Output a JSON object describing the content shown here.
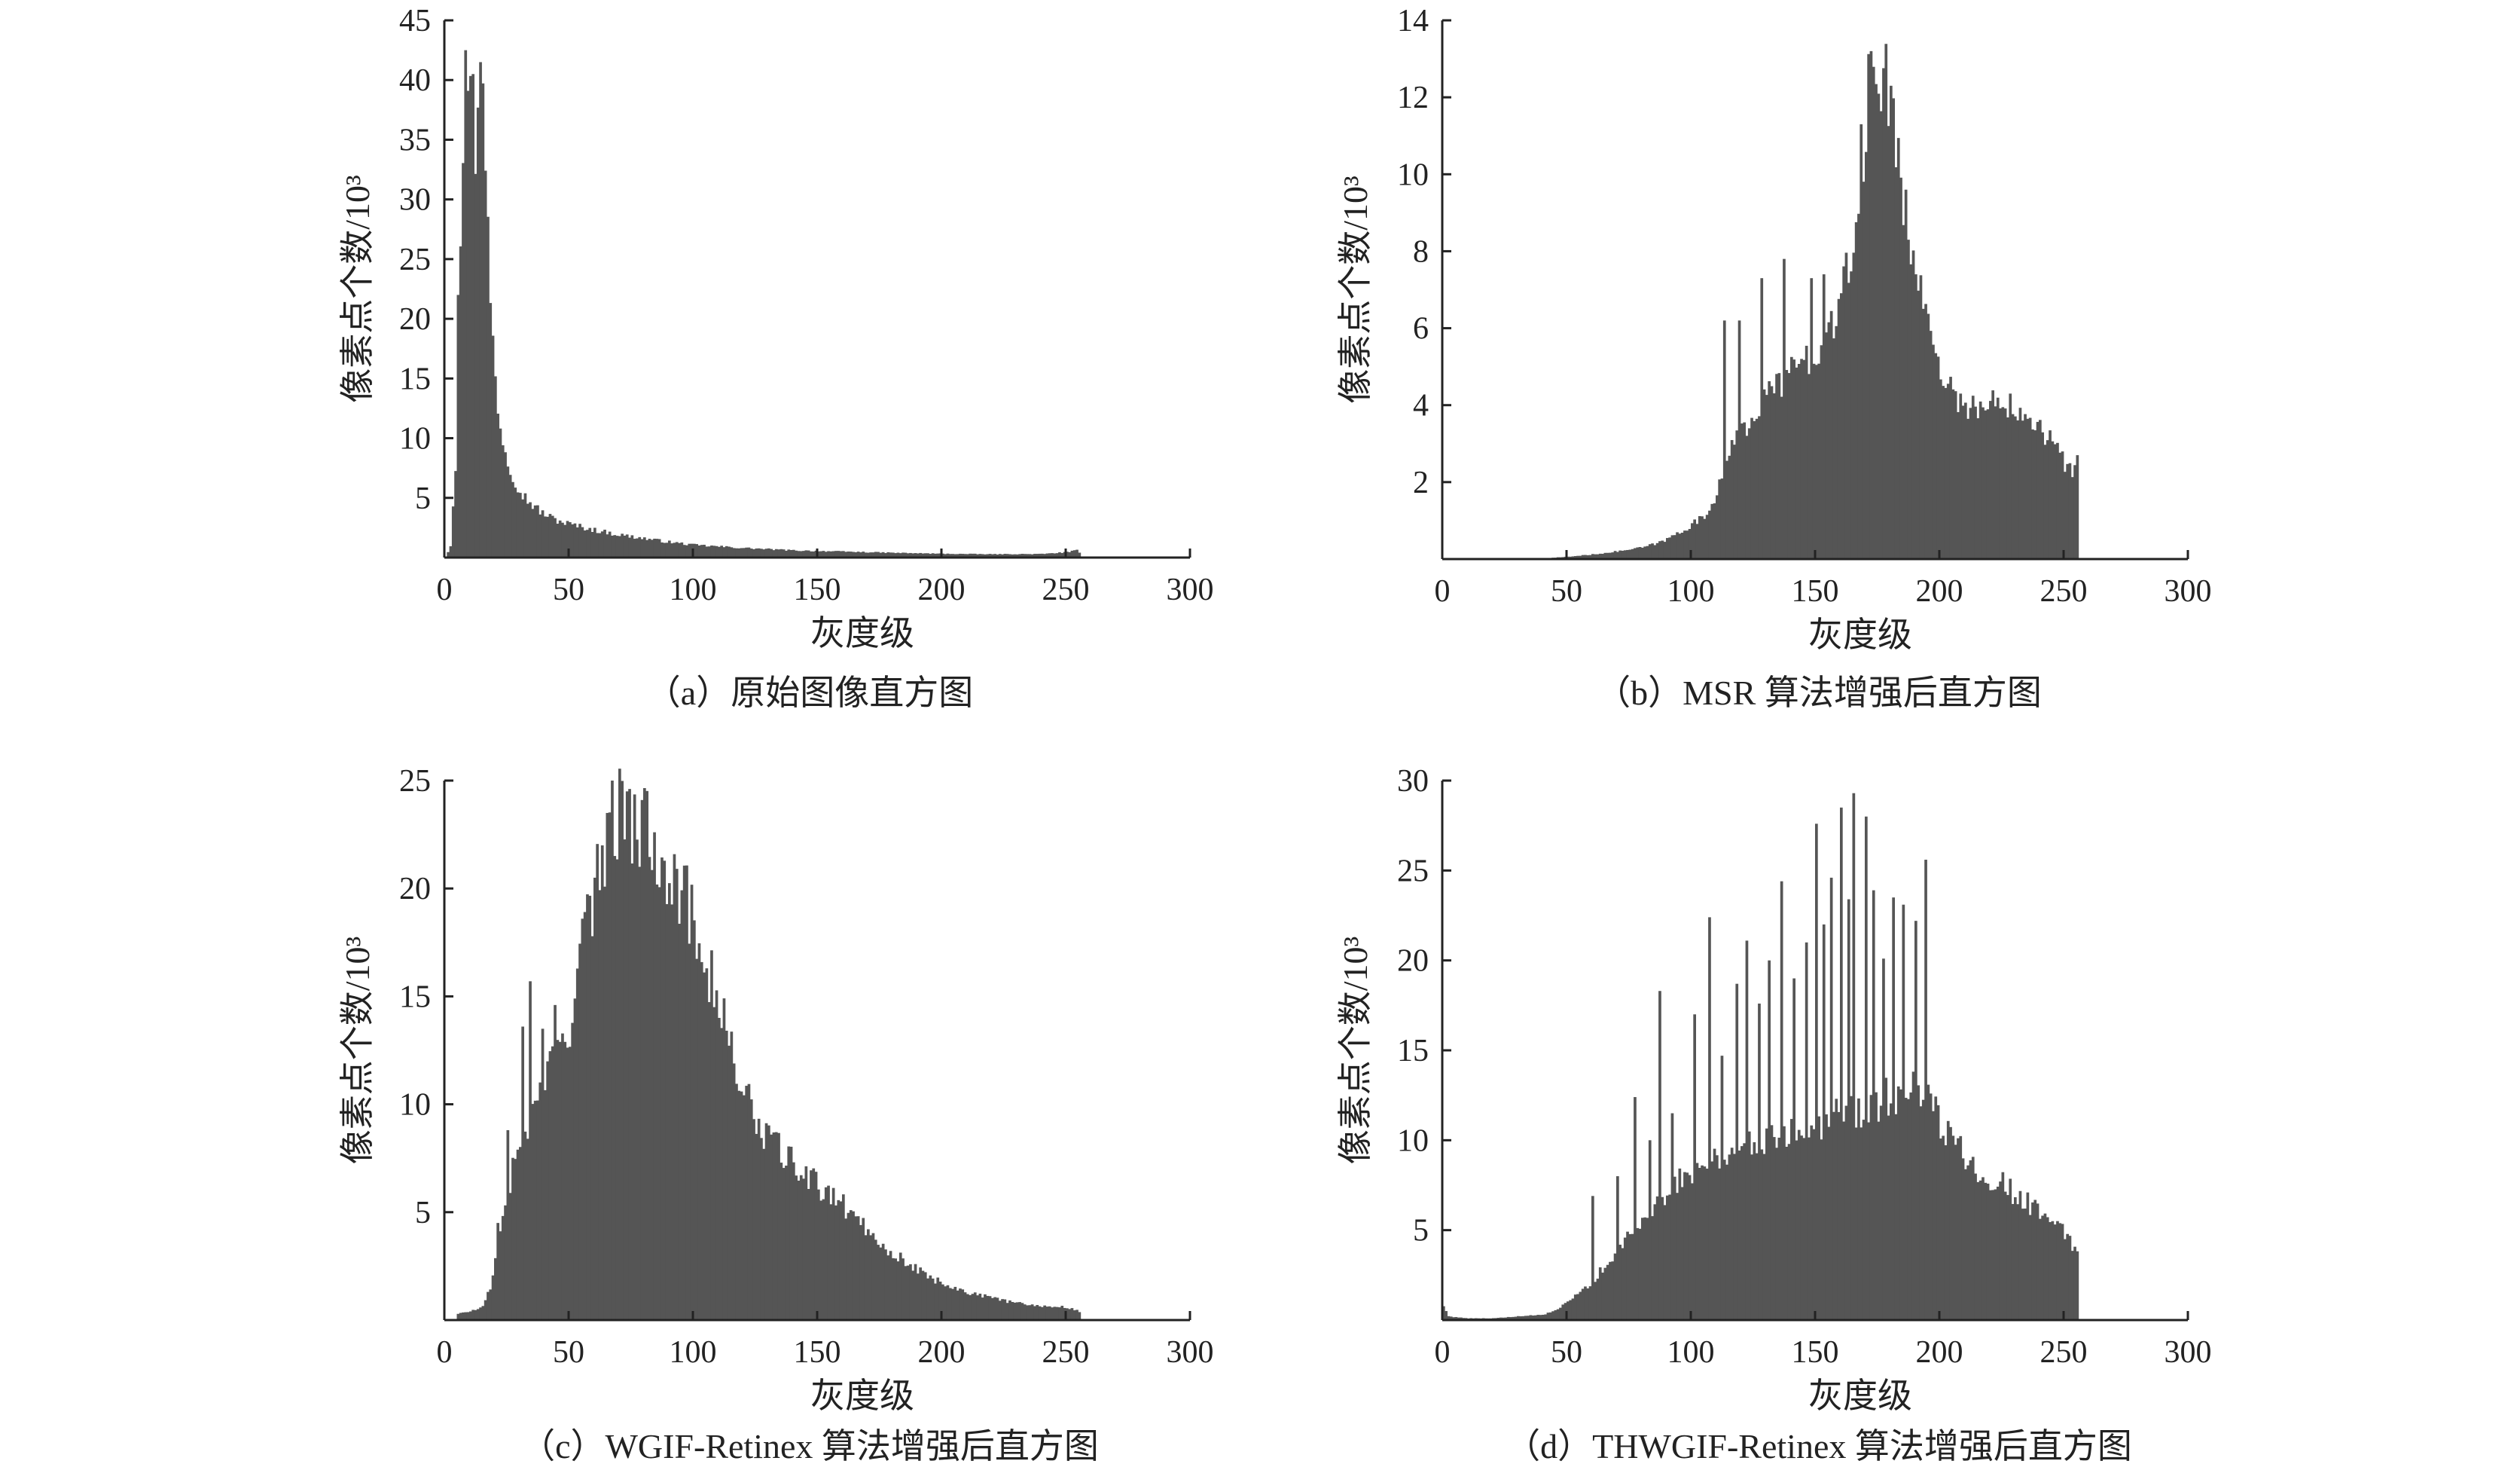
{
  "chart_data": [
    {
      "id": "a",
      "type": "bar",
      "caption": "（a）原始图像直方图",
      "xlabel": "灰度级",
      "ylabel": "像素点个数/10³",
      "xlim": [
        0,
        300
      ],
      "ylim": [
        0,
        45
      ],
      "xticks": [
        0,
        50,
        100,
        150,
        200,
        250,
        300
      ],
      "yticks": [
        5,
        10,
        15,
        20,
        25,
        30,
        35,
        40,
        45
      ],
      "bar_color": "#555555",
      "grid": false,
      "x_range": [
        0,
        255
      ],
      "profile_points": [
        [
          0,
          0
        ],
        [
          2,
          1
        ],
        [
          4,
          8
        ],
        [
          6,
          28
        ],
        [
          8,
          38
        ],
        [
          9,
          42
        ],
        [
          10,
          38
        ],
        [
          11,
          31
        ],
        [
          12,
          33
        ],
        [
          13,
          40
        ],
        [
          14,
          41
        ],
        [
          15,
          38
        ],
        [
          16,
          32
        ],
        [
          17,
          27
        ],
        [
          18,
          22
        ],
        [
          19,
          18
        ],
        [
          20,
          15
        ],
        [
          22,
          11
        ],
        [
          24,
          9
        ],
        [
          26,
          7.5
        ],
        [
          28,
          6.5
        ],
        [
          30,
          5.6
        ],
        [
          33,
          4.8
        ],
        [
          36,
          4.2
        ],
        [
          40,
          3.6
        ],
        [
          45,
          3.1
        ],
        [
          50,
          2.8
        ],
        [
          60,
          2.3
        ],
        [
          70,
          1.9
        ],
        [
          80,
          1.6
        ],
        [
          90,
          1.3
        ],
        [
          100,
          1.05
        ],
        [
          120,
          0.8
        ],
        [
          140,
          0.6
        ],
        [
          160,
          0.5
        ],
        [
          180,
          0.4
        ],
        [
          200,
          0.32
        ],
        [
          220,
          0.28
        ],
        [
          240,
          0.3
        ],
        [
          250,
          0.45
        ],
        [
          254,
          0.6
        ],
        [
          255,
          0.4
        ]
      ],
      "spikes": [
        [
          8,
          42.5
        ],
        [
          14,
          41.5
        ],
        [
          11,
          40.5
        ],
        [
          5,
          22
        ]
      ]
    },
    {
      "id": "b",
      "type": "bar",
      "caption": "（b）MSR 算法增强后直方图",
      "xlabel": "灰度级",
      "ylabel": "像素点个数/10³",
      "xlim": [
        0,
        300
      ],
      "ylim": [
        0,
        14
      ],
      "xticks": [
        0,
        50,
        100,
        150,
        200,
        250,
        300
      ],
      "yticks": [
        2,
        4,
        6,
        8,
        10,
        12,
        14
      ],
      "bar_color": "#555555",
      "grid": false,
      "x_range": [
        0,
        255
      ],
      "profile_points": [
        [
          0,
          0
        ],
        [
          40,
          0.02
        ],
        [
          50,
          0.06
        ],
        [
          60,
          0.12
        ],
        [
          70,
          0.2
        ],
        [
          80,
          0.3
        ],
        [
          88,
          0.45
        ],
        [
          95,
          0.7
        ],
        [
          100,
          0.9
        ],
        [
          105,
          1.1
        ],
        [
          108,
          1.4
        ],
        [
          112,
          2.2
        ],
        [
          115,
          2.7
        ],
        [
          120,
          3.3
        ],
        [
          125,
          3.8
        ],
        [
          130,
          4.2
        ],
        [
          135,
          4.6
        ],
        [
          140,
          4.9
        ],
        [
          145,
          5.1
        ],
        [
          150,
          5.4
        ],
        [
          155,
          5.9
        ],
        [
          160,
          6.6
        ],
        [
          165,
          8.2
        ],
        [
          168,
          9.6
        ],
        [
          170,
          11.5
        ],
        [
          172,
          12.5
        ],
        [
          174,
          13
        ],
        [
          176,
          12.8
        ],
        [
          178,
          12.3
        ],
        [
          180,
          11.8
        ],
        [
          183,
          10.5
        ],
        [
          186,
          9.2
        ],
        [
          190,
          7.8
        ],
        [
          195,
          6.1
        ],
        [
          200,
          5.0
        ],
        [
          205,
          4.3
        ],
        [
          210,
          4.0
        ],
        [
          215,
          3.9
        ],
        [
          220,
          4.0
        ],
        [
          225,
          4.1
        ],
        [
          230,
          4.0
        ],
        [
          235,
          3.8
        ],
        [
          240,
          3.5
        ],
        [
          245,
          3.0
        ],
        [
          250,
          2.5
        ],
        [
          253,
          2.2
        ],
        [
          255,
          2.4
        ]
      ],
      "spikes": [
        [
          113,
          6.2
        ],
        [
          119,
          6.2
        ],
        [
          128,
          7.3
        ],
        [
          137,
          7.8
        ],
        [
          148,
          7.3
        ],
        [
          153,
          7.4
        ],
        [
          168,
          11.3
        ],
        [
          172,
          13.2
        ],
        [
          180,
          12.3
        ],
        [
          186,
          9.6
        ],
        [
          190,
          7.4
        ],
        [
          228,
          4.3
        ],
        [
          255,
          2.7
        ]
      ]
    },
    {
      "id": "c",
      "type": "bar",
      "caption": "（c）WGIF-Retinex 算法增强后直方图",
      "xlabel": "灰度级",
      "ylabel": "像素点个数/10³",
      "xlim": [
        0,
        300
      ],
      "ylim": [
        0,
        25
      ],
      "xticks": [
        0,
        50,
        100,
        150,
        200,
        250,
        300
      ],
      "yticks": [
        5,
        10,
        15,
        20,
        25
      ],
      "bar_color": "#555555",
      "grid": false,
      "x_range": [
        5,
        255
      ],
      "profile_points": [
        [
          5,
          0.3
        ],
        [
          10,
          0.4
        ],
        [
          15,
          0.6
        ],
        [
          18,
          1.5
        ],
        [
          20,
          2.8
        ],
        [
          23,
          4.5
        ],
        [
          26,
          6.5
        ],
        [
          30,
          8.0
        ],
        [
          35,
          9.5
        ],
        [
          40,
          11.0
        ],
        [
          45,
          12.5
        ],
        [
          50,
          14.0
        ],
        [
          55,
          17.0
        ],
        [
          60,
          20.0
        ],
        [
          65,
          22.5
        ],
        [
          70,
          23.5
        ],
        [
          75,
          23.2
        ],
        [
          80,
          22.7
        ],
        [
          85,
          22.2
        ],
        [
          90,
          21.2
        ],
        [
          95,
          19.8
        ],
        [
          100,
          18.3
        ],
        [
          105,
          16.8
        ],
        [
          110,
          14.5
        ],
        [
          115,
          12.5
        ],
        [
          120,
          10.5
        ],
        [
          125,
          9.2
        ],
        [
          130,
          8.4
        ],
        [
          135,
          7.8
        ],
        [
          140,
          7.2
        ],
        [
          145,
          6.7
        ],
        [
          150,
          6.2
        ],
        [
          155,
          5.8
        ],
        [
          160,
          5.3
        ],
        [
          165,
          4.8
        ],
        [
          170,
          4.2
        ],
        [
          175,
          3.6
        ],
        [
          180,
          3.1
        ],
        [
          185,
          2.7
        ],
        [
          190,
          2.3
        ],
        [
          195,
          2.0
        ],
        [
          200,
          1.7
        ],
        [
          210,
          1.3
        ],
        [
          220,
          1.0
        ],
        [
          230,
          0.8
        ],
        [
          240,
          0.65
        ],
        [
          250,
          0.6
        ],
        [
          255,
          0.4
        ]
      ],
      "spikes": [
        [
          21,
          4.5
        ],
        [
          25,
          8.8
        ],
        [
          31,
          13.6
        ],
        [
          34,
          15.7
        ],
        [
          39,
          13.5
        ],
        [
          44,
          14.6
        ],
        [
          55,
          18.6
        ],
        [
          60,
          20.5
        ],
        [
          65,
          23.5
        ],
        [
          67,
          25
        ],
        [
          73,
          24.5
        ],
        [
          79,
          24.1
        ]
      ]
    },
    {
      "id": "d",
      "type": "bar",
      "caption": "（d）THWGIF-Retinex 算法增强后直方图",
      "xlabel": "灰度级",
      "ylabel": "像素点个数/10³",
      "xlim": [
        0,
        300
      ],
      "ylim": [
        0,
        30
      ],
      "xticks": [
        0,
        50,
        100,
        150,
        200,
        250,
        300
      ],
      "yticks": [
        5,
        10,
        15,
        20,
        25,
        30
      ],
      "bar_color": "#555555",
      "grid": false,
      "x_range": [
        0,
        255
      ],
      "profile_points": [
        [
          0,
          0.8
        ],
        [
          2,
          0.2
        ],
        [
          10,
          0.1
        ],
        [
          20,
          0.1
        ],
        [
          30,
          0.2
        ],
        [
          40,
          0.3
        ],
        [
          45,
          0.5
        ],
        [
          50,
          1.0
        ],
        [
          55,
          1.5
        ],
        [
          60,
          2.2
        ],
        [
          65,
          3.0
        ],
        [
          70,
          3.8
        ],
        [
          75,
          4.8
        ],
        [
          80,
          5.5
        ],
        [
          85,
          6.5
        ],
        [
          90,
          7.2
        ],
        [
          95,
          7.8
        ],
        [
          100,
          8.4
        ],
        [
          110,
          9.0
        ],
        [
          120,
          9.6
        ],
        [
          130,
          10.1
        ],
        [
          140,
          10.6
        ],
        [
          150,
          11.0
        ],
        [
          160,
          11.5
        ],
        [
          170,
          11.8
        ],
        [
          180,
          12.4
        ],
        [
          185,
          13.0
        ],
        [
          190,
          12.6
        ],
        [
          195,
          11.9
        ],
        [
          200,
          11.0
        ],
        [
          205,
          10.0
        ],
        [
          210,
          9.2
        ],
        [
          215,
          8.5
        ],
        [
          220,
          8.0
        ],
        [
          225,
          7.5
        ],
        [
          230,
          7.0
        ],
        [
          235,
          6.5
        ],
        [
          240,
          6.0
        ],
        [
          245,
          5.5
        ],
        [
          250,
          4.8
        ],
        [
          253,
          4.2
        ],
        [
          255,
          4.0
        ]
      ],
      "spikes": [
        [
          60,
          6.9
        ],
        [
          70,
          8.0
        ],
        [
          77,
          12.4
        ],
        [
          83,
          10.0
        ],
        [
          87,
          18.3
        ],
        [
          92,
          11.5
        ],
        [
          101,
          17.0
        ],
        [
          107,
          22.4
        ],
        [
          112,
          14.7
        ],
        [
          118,
          18.7
        ],
        [
          122,
          21.1
        ],
        [
          127,
          17.6
        ],
        [
          131,
          20.0
        ],
        [
          136,
          24.4
        ],
        [
          141,
          19.0
        ],
        [
          146,
          21.0
        ],
        [
          150,
          27.6
        ],
        [
          153,
          22.0
        ],
        [
          156,
          24.6
        ],
        [
          160,
          28.5
        ],
        [
          163,
          23.4
        ],
        [
          165,
          29.3
        ],
        [
          170,
          28.0
        ],
        [
          173,
          23.9
        ],
        [
          177,
          20.1
        ],
        [
          181,
          23.5
        ],
        [
          185,
          23.1
        ],
        [
          190,
          22.2
        ],
        [
          194,
          25.6
        ]
      ]
    }
  ]
}
